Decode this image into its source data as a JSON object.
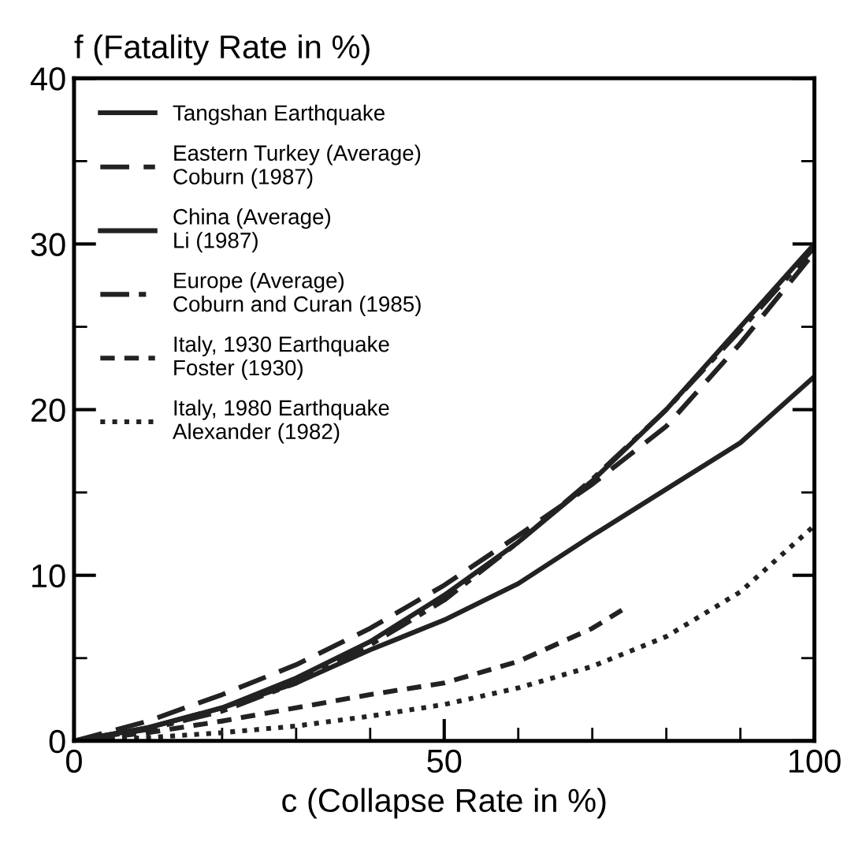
{
  "chart_data": {
    "type": "line",
    "xlabel": "c (Collapse Rate in %)",
    "ylabel": "f (Fatality Rate in %)",
    "xlim": [
      0,
      100
    ],
    "ylim": [
      0,
      40
    ],
    "xticks": [
      0,
      50,
      100
    ],
    "yticks": [
      0,
      10,
      20,
      30,
      40
    ],
    "grid": false,
    "legend": "top left",
    "marker": "none",
    "series": [
      {
        "name": "Tangshan Earthquake",
        "color": "#222222",
        "line_style": "solid",
        "x": [
          0,
          10,
          20,
          30,
          40,
          50,
          60,
          70,
          80,
          90,
          100
        ],
        "values": [
          0,
          0.8,
          2,
          3.8,
          6,
          8.8,
          12,
          15.7,
          20,
          25,
          30
        ]
      },
      {
        "name": "Eastern Turkey (Average)\nCoburn (1987)",
        "color": "#222222",
        "line_style": "dashed",
        "x": [
          0,
          10,
          20,
          30,
          40,
          50,
          60,
          70,
          80,
          90,
          100
        ],
        "values": [
          0,
          1.2,
          2.8,
          4.6,
          6.8,
          9.4,
          12.4,
          15.5,
          19,
          24,
          29.5
        ]
      },
      {
        "name": "China (Average)\nLi (1987)",
        "color": "#222222",
        "line_style": "solid",
        "x": [
          0,
          10,
          20,
          30,
          40,
          50,
          60,
          70,
          80,
          90,
          100
        ],
        "values": [
          0,
          0.8,
          2,
          3.5,
          5.5,
          7.3,
          9.5,
          12.4,
          15.2,
          18,
          22
        ]
      },
      {
        "name": "Europe (Average)\nCoburn and Curan (1985)",
        "color": "#222222",
        "line_style": "dashdot",
        "x": [
          0,
          10,
          20,
          30,
          40,
          50,
          60,
          70,
          80,
          90,
          100
        ],
        "values": [
          0,
          0.7,
          1.8,
          3.5,
          5.8,
          8.5,
          12,
          15.8,
          20,
          24.8,
          29.8
        ]
      },
      {
        "name": "Italy, 1930 Earthquake\nFoster (1930)",
        "color": "#222222",
        "line_style": "dashed_short",
        "x": [
          0,
          10,
          20,
          30,
          40,
          50,
          60,
          70,
          74
        ],
        "values": [
          0,
          0.5,
          1.2,
          2,
          2.8,
          3.5,
          4.8,
          6.8,
          7.9
        ]
      },
      {
        "name": "Italy, 1980 Earthquake\nAlexander (1982)",
        "color": "#222222",
        "line_style": "dotted",
        "x": [
          0,
          10,
          20,
          30,
          40,
          50,
          60,
          70,
          80,
          90,
          100
        ],
        "values": [
          0,
          0.2,
          0.5,
          0.9,
          1.5,
          2.2,
          3.2,
          4.5,
          6.3,
          9,
          13
        ]
      }
    ]
  }
}
